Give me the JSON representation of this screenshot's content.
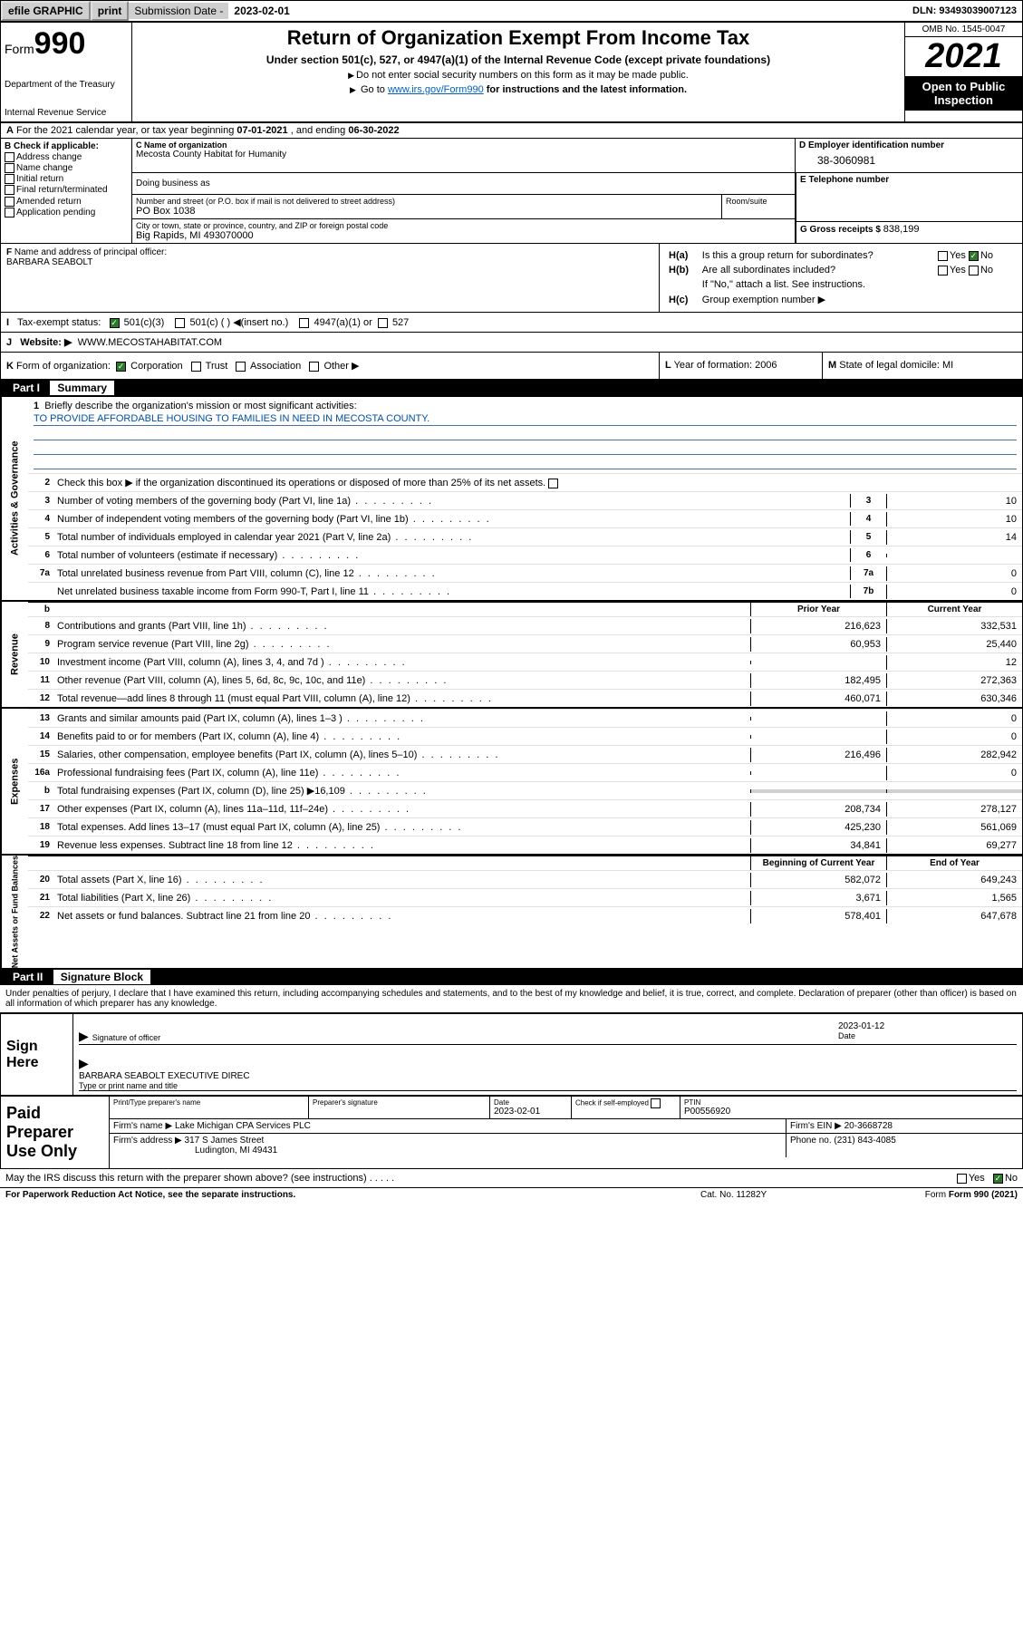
{
  "topbar": {
    "efile": "efile GRAPHIC",
    "print": "print",
    "subdate_label": "Submission Date - ",
    "subdate": "2023-02-01",
    "dln": "DLN: 93493039007123"
  },
  "header": {
    "form": "Form",
    "num": "990",
    "dept": "Department of the Treasury",
    "irs": "Internal Revenue Service",
    "title": "Return of Organization Exempt From Income Tax",
    "subtitle": "Under section 501(c), 527, or 4947(a)(1) of the Internal Revenue Code (except private foundations)",
    "hint1": "Do not enter social security numbers on this form as it may be made public.",
    "hint2_pre": "Go to ",
    "hint2_link": "www.irs.gov/Form990",
    "hint2_post": " for instructions and the latest information.",
    "omb": "OMB No. 1545-0047",
    "year": "2021",
    "inspection": "Open to Public Inspection"
  },
  "rowA": {
    "label": "A",
    "text": " For the 2021 calendar year, or tax year beginning ",
    "begin": "07-01-2021",
    "mid": "   , and ending ",
    "end": "06-30-2022"
  },
  "colB": {
    "label": "B Check if applicable:",
    "items": [
      "Address change",
      "Name change",
      "Initial return",
      "Final return/terminated",
      "Amended return",
      "Application pending"
    ]
  },
  "colC": {
    "name_label": "C Name of organization",
    "name": "Mecosta County Habitat for Humanity",
    "dba_label": "Doing business as",
    "addr_label": "Number and street (or P.O. box if mail is not delivered to street address)",
    "addr": "PO Box 1038",
    "room_label": "Room/suite",
    "city_label": "City or town, state or province, country, and ZIP or foreign postal code",
    "city": "Big Rapids, MI  493070000"
  },
  "colD": {
    "ein_label": "D Employer identification number",
    "ein": "38-3060981",
    "tel_label": "E Telephone number",
    "tel": "",
    "gross_label": "G Gross receipts $ ",
    "gross": "838,199"
  },
  "rowF": {
    "label": "F",
    "text": " Name and address of principal officer:",
    "name": "BARBARA SEABOLT"
  },
  "rowH": {
    "ha_label": "H(a)",
    "ha_text": "Is this a group return for subordinates?",
    "ha_yes": "Yes",
    "ha_no": "No",
    "hb_label": "H(b)",
    "hb_text": "Are all subordinates included?",
    "hb_yes": "Yes",
    "hb_no": "No",
    "hb_note": "If \"No,\" attach a list. See instructions.",
    "hc_label": "H(c)",
    "hc_text": "Group exemption number ▶"
  },
  "rowI": {
    "label": "I",
    "text": "Tax-exempt status:",
    "opt1": "501(c)(3)",
    "opt2": "501(c) (  ) ◀(insert no.)",
    "opt3": "4947(a)(1) or",
    "opt4": "527"
  },
  "rowJ": {
    "label": "J",
    "text": "Website: ▶",
    "url": "WWW.MECOSTAHABITAT.COM"
  },
  "rowK": {
    "label": "K",
    "text": "Form of organization:",
    "opts": [
      "Corporation",
      "Trust",
      "Association",
      "Other ▶"
    ]
  },
  "rowL": {
    "label": "L",
    "text": "Year of formation: 2006"
  },
  "rowM": {
    "label": "M",
    "text": "State of legal domicile: MI"
  },
  "part1": {
    "num": "Part I",
    "title": "Summary"
  },
  "sidebars": {
    "s1": "Activities & Governance",
    "s2": "Revenue",
    "s3": "Expenses",
    "s4": "Net Assets or Fund Balances"
  },
  "mission": {
    "num": "1",
    "label": "Briefly describe the organization's mission or most significant activities:",
    "text": "TO PROVIDE AFFORDABLE HOUSING TO FAMILIES IN NEED IN MECOSTA COUNTY."
  },
  "line2": {
    "num": "2",
    "text": "Check this box ▶        if the organization discontinued its operations or disposed of more than 25% of its net assets."
  },
  "gov_rows": [
    {
      "n": "3",
      "d": "Number of voting members of the governing body (Part VI, line 1a)",
      "b": "3",
      "v": "10"
    },
    {
      "n": "4",
      "d": "Number of independent voting members of the governing body (Part VI, line 1b)",
      "b": "4",
      "v": "10"
    },
    {
      "n": "5",
      "d": "Total number of individuals employed in calendar year 2021 (Part V, line 2a)",
      "b": "5",
      "v": "14"
    },
    {
      "n": "6",
      "d": "Total number of volunteers (estimate if necessary)",
      "b": "6",
      "v": ""
    },
    {
      "n": "7a",
      "d": "Total unrelated business revenue from Part VIII, column (C), line 12",
      "b": "7a",
      "v": "0"
    },
    {
      "n": "",
      "d": "Net unrelated business taxable income from Form 990-T, Part I, line 11",
      "b": "7b",
      "v": "0"
    }
  ],
  "col_hdr": {
    "b": "b",
    "py": "Prior Year",
    "cy": "Current Year"
  },
  "rev_rows": [
    {
      "n": "8",
      "d": "Contributions and grants (Part VIII, line 1h)",
      "py": "216,623",
      "cy": "332,531"
    },
    {
      "n": "9",
      "d": "Program service revenue (Part VIII, line 2g)",
      "py": "60,953",
      "cy": "25,440"
    },
    {
      "n": "10",
      "d": "Investment income (Part VIII, column (A), lines 3, 4, and 7d )",
      "py": "",
      "cy": "12"
    },
    {
      "n": "11",
      "d": "Other revenue (Part VIII, column (A), lines 5, 6d, 8c, 9c, 10c, and 11e)",
      "py": "182,495",
      "cy": "272,363"
    },
    {
      "n": "12",
      "d": "Total revenue—add lines 8 through 11 (must equal Part VIII, column (A), line 12)",
      "py": "460,071",
      "cy": "630,346"
    }
  ],
  "exp_rows": [
    {
      "n": "13",
      "d": "Grants and similar amounts paid (Part IX, column (A), lines 1–3 )",
      "py": "",
      "cy": "0"
    },
    {
      "n": "14",
      "d": "Benefits paid to or for members (Part IX, column (A), line 4)",
      "py": "",
      "cy": "0"
    },
    {
      "n": "15",
      "d": "Salaries, other compensation, employee benefits (Part IX, column (A), lines 5–10)",
      "py": "216,496",
      "cy": "282,942"
    },
    {
      "n": "16a",
      "d": "Professional fundraising fees (Part IX, column (A), line 11e)",
      "py": "",
      "cy": "0"
    },
    {
      "n": "b",
      "d": "Total fundraising expenses (Part IX, column (D), line 25) ▶16,109",
      "py": "gray",
      "cy": "gray"
    },
    {
      "n": "17",
      "d": "Other expenses (Part IX, column (A), lines 11a–11d, 11f–24e)",
      "py": "208,734",
      "cy": "278,127"
    },
    {
      "n": "18",
      "d": "Total expenses. Add lines 13–17 (must equal Part IX, column (A), line 25)",
      "py": "425,230",
      "cy": "561,069"
    },
    {
      "n": "19",
      "d": "Revenue less expenses. Subtract line 18 from line 12",
      "py": "34,841",
      "cy": "69,277"
    }
  ],
  "na_hdr": {
    "py": "Beginning of Current Year",
    "cy": "End of Year"
  },
  "na_rows": [
    {
      "n": "20",
      "d": "Total assets (Part X, line 16)",
      "py": "582,072",
      "cy": "649,243"
    },
    {
      "n": "21",
      "d": "Total liabilities (Part X, line 26)",
      "py": "3,671",
      "cy": "1,565"
    },
    {
      "n": "22",
      "d": "Net assets or fund balances. Subtract line 21 from line 20",
      "py": "578,401",
      "cy": "647,678"
    }
  ],
  "part2": {
    "num": "Part II",
    "title": "Signature Block"
  },
  "sig": {
    "intro": "Under penalties of perjury, I declare that I have examined this return, including accompanying schedules and statements, and to the best of my knowledge and belief, it is true, correct, and complete. Declaration of preparer (other than officer) is based on all information of which preparer has any knowledge.",
    "sign_here": "Sign Here",
    "sig_of_officer": "Signature of officer",
    "date_label": "Date",
    "date": "2023-01-12",
    "name": "BARBARA SEABOLT EXECUTIVE DIREC",
    "name_label": "Type or print name and title"
  },
  "prep": {
    "label": "Paid Preparer Use Only",
    "h1": "Print/Type preparer's name",
    "h2": "Preparer's signature",
    "h3": "Date",
    "h3v": "2023-02-01",
    "h4": "Check        if self-employed",
    "h5": "PTIN",
    "h5v": "P00556920",
    "firm_name_l": "Firm's name    ▶",
    "firm_name": "Lake Michigan CPA Services PLC",
    "firm_ein_l": "Firm's EIN ▶",
    "firm_ein": "20-3668728",
    "firm_addr_l": "Firm's address ▶",
    "firm_addr1": "317 S James Street",
    "firm_addr2": "Ludington, MI  49431",
    "phone_l": "Phone no.",
    "phone": "(231) 843-4085"
  },
  "footer": {
    "discuss": "May the IRS discuss this return with the preparer shown above? (see instructions)",
    "yes": "Yes",
    "no": "No",
    "paperwork": "For Paperwork Reduction Act Notice, see the separate instructions.",
    "cat": "Cat. No. 11282Y",
    "form": "Form 990 (2021)"
  }
}
